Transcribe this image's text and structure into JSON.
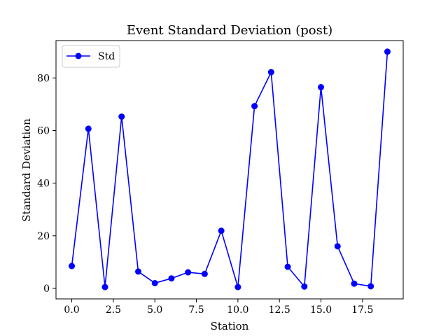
{
  "chart_data": {
    "type": "line",
    "title": "Event Standard Deviation (post)",
    "xlabel": "Station",
    "ylabel": "Standard Deviation",
    "xlim": [
      -0.95,
      19.95
    ],
    "ylim": [
      -4,
      94.2
    ],
    "x_ticks": [
      0.0,
      2.5,
      5.0,
      7.5,
      10.0,
      12.5,
      15.0,
      17.5
    ],
    "x_tick_labels": [
      "0.0",
      "2.5",
      "5.0",
      "7.5",
      "10.0",
      "12.5",
      "15.0",
      "17.5"
    ],
    "y_ticks": [
      0,
      20,
      40,
      60,
      80
    ],
    "y_tick_labels": [
      "0",
      "20",
      "40",
      "60",
      "80"
    ],
    "grid": false,
    "legend_position": "top-left",
    "series": [
      {
        "name": "Std",
        "color": "#0000ff",
        "marker": "circle",
        "x": [
          0,
          1,
          2,
          3,
          4,
          5,
          6,
          7,
          8,
          9,
          10,
          11,
          12,
          13,
          14,
          15,
          16,
          17,
          18,
          19
        ],
        "values": [
          8.5,
          60.7,
          0.5,
          65.3,
          6.4,
          2.0,
          3.8,
          6.1,
          5.5,
          21.9,
          0.5,
          69.3,
          82.2,
          8.2,
          0.7,
          76.5,
          16.0,
          1.8,
          0.8,
          90.0
        ]
      }
    ]
  }
}
